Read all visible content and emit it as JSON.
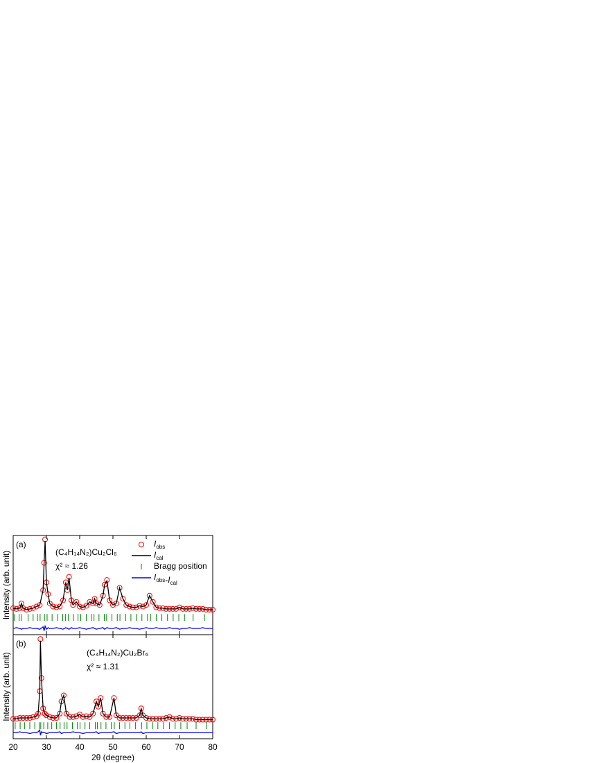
{
  "chart_data": [
    {
      "type": "line",
      "panel_label": "(a)",
      "formula": "(C₄H₁₄N₂)Cu₂Cl₆",
      "chi": "χ² ≈ 1.26",
      "ylabel": "Intensity (arb. unit)",
      "xlim": [
        20,
        80
      ],
      "xticks": [
        20,
        30,
        40,
        50,
        60,
        70,
        80
      ],
      "ylim": [
        -22,
        105
      ],
      "legend": "upper right",
      "series": [
        {
          "name": "Iobs",
          "color": "#ff0000",
          "style": "circles",
          "x": [
            20,
            21,
            22,
            22.5,
            23,
            24,
            25,
            26,
            27,
            28,
            29,
            29.3,
            29.6,
            30,
            30.5,
            31,
            32,
            33,
            34,
            35,
            35.8,
            36.3,
            36.8,
            37.5,
            38,
            39,
            40,
            41,
            42,
            43,
            44,
            44.5,
            45,
            46,
            47,
            47.5,
            48.2,
            49,
            50,
            51,
            52,
            53,
            54,
            55,
            56,
            57,
            58,
            59,
            60,
            61,
            62,
            63,
            64,
            65,
            66,
            67,
            68,
            69,
            70,
            71,
            72,
            73,
            74,
            75,
            76,
            77,
            78,
            79,
            80
          ],
          "values": [
            12,
            11,
            12,
            18,
            12,
            10,
            11,
            12,
            14,
            16,
            35,
            70,
            100,
            45,
            30,
            18,
            14,
            13,
            14,
            22,
            45,
            35,
            52,
            22,
            16,
            20,
            14,
            13,
            15,
            20,
            18,
            24,
            18,
            16,
            28,
            42,
            48,
            22,
            16,
            18,
            38,
            24,
            16,
            14,
            13,
            13,
            15,
            14,
            16,
            28,
            20,
            13,
            12,
            12,
            11,
            11,
            11,
            11,
            13,
            11,
            11,
            11,
            12,
            11,
            11,
            11,
            10,
            10,
            10
          ]
        },
        {
          "name": "Ical",
          "color": "#000000",
          "style": "line",
          "x": [
            20,
            21,
            22,
            22.5,
            23,
            24,
            25,
            26,
            27,
            28,
            29,
            29.3,
            29.6,
            30,
            30.5,
            31,
            32,
            33,
            34,
            35,
            35.8,
            36.3,
            36.8,
            37.5,
            38,
            39,
            40,
            41,
            42,
            43,
            44,
            44.5,
            45,
            46,
            47,
            47.5,
            48.2,
            49,
            50,
            51,
            52,
            53,
            54,
            55,
            56,
            57,
            58,
            59,
            60,
            61,
            62,
            63,
            64,
            65,
            66,
            67,
            68,
            69,
            70,
            71,
            72,
            73,
            74,
            75,
            76,
            77,
            78,
            79,
            80
          ],
          "values": [
            12,
            11,
            12,
            18,
            12,
            10,
            11,
            12,
            14,
            16,
            35,
            70,
            98,
            45,
            30,
            18,
            14,
            13,
            14,
            22,
            45,
            35,
            51,
            22,
            16,
            20,
            14,
            13,
            15,
            20,
            18,
            24,
            18,
            16,
            28,
            42,
            47,
            22,
            16,
            18,
            38,
            24,
            16,
            14,
            13,
            13,
            15,
            14,
            16,
            28,
            20,
            13,
            12,
            12,
            11,
            11,
            11,
            11,
            13,
            11,
            11,
            11,
            12,
            11,
            11,
            11,
            10,
            10,
            10
          ]
        },
        {
          "name": "Bragg position",
          "color": "#008000",
          "style": "ticks",
          "x": [
            20.3,
            21.8,
            22.4,
            24.5,
            26,
            27.3,
            28.1,
            29.4,
            30.2,
            31.7,
            33.4,
            34.9,
            35.7,
            36.6,
            38.1,
            39.5,
            40.3,
            42,
            43.5,
            44.3,
            45.8,
            47.4,
            48.1,
            49.7,
            51.3,
            52.1,
            53.8,
            55.4,
            57,
            58.7,
            60.4,
            61.3,
            63,
            64.7,
            66.4,
            68.1,
            69.8,
            71.5,
            74.1,
            77.5
          ],
          "values": [
            0,
            0,
            0,
            0,
            0,
            0,
            0,
            0,
            0,
            0,
            0,
            0,
            0,
            0,
            0,
            0,
            0,
            0,
            0,
            0,
            0,
            0,
            0,
            0,
            0,
            0,
            0,
            0,
            0,
            0,
            0,
            0,
            0,
            0,
            0,
            0,
            0,
            0,
            0,
            0
          ]
        },
        {
          "name": "Iobs-Ical",
          "color": "#0000ff",
          "style": "line",
          "x": [
            20,
            21,
            22,
            22.5,
            23,
            24,
            25,
            26,
            27,
            28,
            29,
            29.3,
            29.6,
            30,
            30.5,
            31,
            32,
            33,
            34,
            35,
            35.8,
            36.3,
            36.8,
            37.5,
            38,
            39,
            40,
            41,
            42,
            43,
            44,
            44.5,
            45,
            46,
            47,
            47.5,
            48.2,
            49,
            50,
            51,
            52,
            53,
            54,
            55,
            56,
            57,
            58,
            59,
            60,
            61,
            62,
            63,
            64,
            65,
            66,
            67,
            68,
            69,
            70,
            71,
            72,
            73,
            74,
            75,
            76,
            77,
            78,
            79,
            80
          ],
          "values": [
            -14,
            -13,
            -14,
            -15,
            -14,
            -14,
            -13,
            -14,
            -14,
            -15,
            -12,
            -17,
            -11,
            -15,
            -13,
            -14,
            -14,
            -13,
            -14,
            -15,
            -13,
            -14,
            -15,
            -13,
            -14,
            -14,
            -13,
            -14,
            -15,
            -14,
            -13,
            -14,
            -15,
            -14,
            -13,
            -15,
            -13,
            -14,
            -14,
            -13,
            -15,
            -14,
            -14,
            -13,
            -14,
            -14,
            -15,
            -14,
            -13,
            -14,
            -14,
            -13,
            -14,
            -14,
            -14,
            -13,
            -14,
            -14,
            -15,
            -14,
            -14,
            -13,
            -14,
            -14,
            -14,
            -13,
            -14,
            -14,
            -14
          ]
        }
      ]
    },
    {
      "type": "line",
      "panel_label": "(b)",
      "formula": "(C₄H₁₄N₂)Cu₂Br₆",
      "chi": "χ² ≈ 1.31",
      "ylabel": "Intensity (arb. unit)",
      "xlabel": "2θ (degree)",
      "xlim": [
        20,
        80
      ],
      "xticks": [
        20,
        30,
        40,
        50,
        60,
        70,
        80
      ],
      "ylim": [
        -15,
        105
      ],
      "series": [
        {
          "name": "Iobs",
          "color": "#ff0000",
          "style": "circles",
          "x": [
            20,
            21,
            22,
            23,
            24,
            25,
            26,
            27,
            27.5,
            28,
            28.2,
            28.5,
            29,
            29.5,
            30,
            31,
            32,
            33,
            34,
            34.5,
            35.2,
            36,
            37,
            38,
            39,
            40,
            41,
            42,
            43,
            44,
            45,
            45.6,
            46.3,
            47,
            48,
            49,
            50.3,
            51,
            52,
            53,
            54,
            55,
            56,
            57,
            58,
            58.5,
            59,
            60,
            61,
            62,
            63,
            64,
            65,
            66,
            67,
            68,
            69,
            70,
            71,
            72,
            73,
            74,
            75,
            76,
            77,
            78,
            79,
            80
          ],
          "values": [
            8,
            8,
            9,
            9,
            9,
            9,
            10,
            11,
            14,
            40,
            100,
            55,
            20,
            14,
            12,
            10,
            9,
            9,
            14,
            28,
            35,
            14,
            10,
            10,
            11,
            13,
            10,
            11,
            10,
            14,
            28,
            22,
            32,
            14,
            10,
            10,
            32,
            12,
            9,
            9,
            9,
            9,
            9,
            9,
            12,
            20,
            12,
            9,
            8,
            8,
            8,
            8,
            8,
            9,
            10,
            8,
            8,
            9,
            8,
            8,
            8,
            8,
            7,
            7,
            7,
            7,
            7,
            7
          ]
        },
        {
          "name": "Ical",
          "color": "#000000",
          "style": "line",
          "x": [
            20,
            21,
            22,
            23,
            24,
            25,
            26,
            27,
            27.5,
            28,
            28.2,
            28.5,
            29,
            29.5,
            30,
            31,
            32,
            33,
            34,
            34.5,
            35.2,
            36,
            37,
            38,
            39,
            40,
            41,
            42,
            43,
            44,
            45,
            45.6,
            46.3,
            47,
            48,
            49,
            50.3,
            51,
            52,
            53,
            54,
            55,
            56,
            57,
            58,
            58.5,
            59,
            60,
            61,
            62,
            63,
            64,
            65,
            66,
            67,
            68,
            69,
            70,
            71,
            72,
            73,
            74,
            75,
            76,
            77,
            78,
            79,
            80
          ],
          "values": [
            8,
            8,
            9,
            9,
            9,
            9,
            10,
            11,
            14,
            40,
            98,
            55,
            20,
            14,
            12,
            10,
            9,
            9,
            14,
            28,
            35,
            14,
            10,
            10,
            11,
            13,
            10,
            11,
            10,
            14,
            28,
            22,
            32,
            14,
            10,
            10,
            32,
            12,
            9,
            9,
            9,
            9,
            9,
            9,
            12,
            20,
            12,
            9,
            8,
            8,
            8,
            8,
            8,
            9,
            10,
            8,
            8,
            9,
            8,
            8,
            8,
            8,
            7,
            7,
            7,
            7,
            7,
            7
          ]
        },
        {
          "name": "Bragg position",
          "color": "#008000",
          "style": "ticks",
          "x": [
            20.6,
            22.1,
            23.4,
            25,
            26.5,
            27.9,
            28.3,
            29.2,
            30.4,
            31.6,
            33,
            34.1,
            35.3,
            36.2,
            37.8,
            39.3,
            40.1,
            41.6,
            43,
            44.7,
            45.3,
            46.4,
            47.9,
            49.5,
            50.4,
            52,
            53.6,
            55.1,
            56.8,
            58.6,
            60.2,
            61.9,
            63.5,
            65.2,
            67,
            68.7,
            70.4,
            72.3,
            75,
            78.2
          ],
          "values": [
            0,
            0,
            0,
            0,
            0,
            0,
            0,
            0,
            0,
            0,
            0,
            0,
            0,
            0,
            0,
            0,
            0,
            0,
            0,
            0,
            0,
            0,
            0,
            0,
            0,
            0,
            0,
            0,
            0,
            0,
            0,
            0,
            0,
            0,
            0,
            0,
            0,
            0,
            0,
            0
          ]
        },
        {
          "name": "Iobs-Ical",
          "color": "#0000ff",
          "style": "line",
          "x": [
            20,
            21,
            22,
            23,
            24,
            25,
            26,
            27,
            27.5,
            28,
            28.2,
            28.5,
            29,
            29.5,
            30,
            31,
            32,
            33,
            34,
            34.5,
            35.2,
            36,
            37,
            38,
            39,
            40,
            41,
            42,
            43,
            44,
            45,
            45.6,
            46.3,
            47,
            48,
            49,
            50.3,
            51,
            52,
            53,
            54,
            55,
            56,
            57,
            58,
            58.5,
            59,
            60,
            61,
            62,
            63,
            64,
            65,
            66,
            67,
            68,
            69,
            70,
            71,
            72,
            73,
            74,
            75,
            76,
            77,
            78,
            79,
            80
          ],
          "values": [
            -8,
            -8,
            -7,
            -8,
            -8,
            -9,
            -8,
            -8,
            -7,
            -5,
            -11,
            -7,
            -8,
            -8,
            -9,
            -8,
            -8,
            -8,
            -7,
            -9,
            -8,
            -8,
            -8,
            -7,
            -8,
            -8,
            -9,
            -8,
            -8,
            -8,
            -7,
            -9,
            -8,
            -8,
            -8,
            -8,
            -7,
            -9,
            -8,
            -8,
            -8,
            -8,
            -8,
            -8,
            -8,
            -7,
            -9,
            -8,
            -8,
            -8,
            -8,
            -8,
            -8,
            -8,
            -8,
            -8,
            -8,
            -8,
            -8,
            -8,
            -8,
            -8,
            -8,
            -8,
            -8,
            -8,
            -8,
            -8
          ]
        }
      ]
    }
  ]
}
